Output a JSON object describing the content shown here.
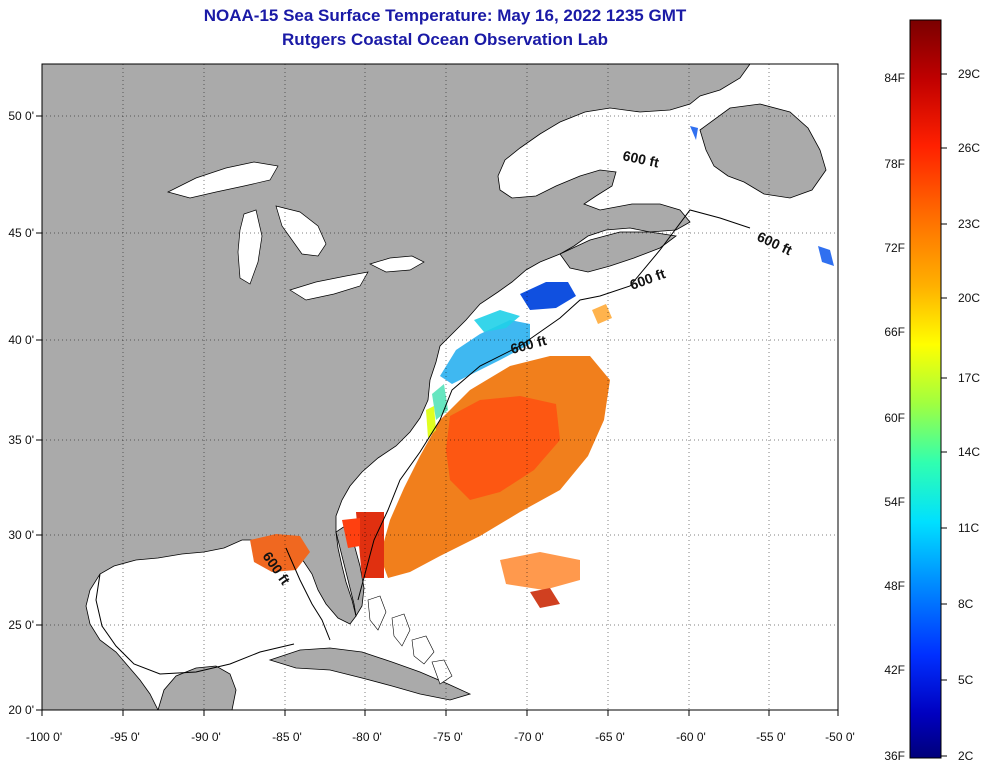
{
  "title_line1": "NOAA-15 Sea Surface Temperature:  May 16, 2022 1235 GMT",
  "title_line2": "Rutgers Coastal Ocean Observation Lab",
  "x_ticks": [
    "-100 0'",
    "-95 0'",
    "-90 0'",
    "-85 0'",
    "-80 0'",
    "-75 0'",
    "-70 0'",
    "-65 0'",
    "-60 0'",
    "-55 0'",
    "-50 0'"
  ],
  "y_ticks": [
    "20 0'",
    "25 0'",
    "30 0'",
    "35 0'",
    "40 0'",
    "45 0'",
    "50 0'"
  ],
  "depth_labels": [
    "600 ft",
    "600 ft",
    "600 ft",
    "600 ft",
    "600 ft"
  ],
  "colorbar": {
    "fahrenheit": [
      "84F",
      "78F",
      "72F",
      "66F",
      "60F",
      "54F",
      "48F",
      "42F",
      "36F"
    ],
    "celsius": [
      "29C",
      "26C",
      "23C",
      "20C",
      "17C",
      "14C",
      "11C",
      "8C",
      "5C",
      "2C"
    ],
    "colors": [
      "#7a0000",
      "#c00000",
      "#ff2000",
      "#ff7000",
      "#ffb000",
      "#ffff00",
      "#a0ff40",
      "#30ffb0",
      "#00e0ff",
      "#0090ff",
      "#0030ff",
      "#0000c0",
      "#00007a"
    ]
  },
  "colors": {
    "land": "#aaaaaa",
    "water": "#ffffff",
    "title": "#1a1aa6"
  }
}
